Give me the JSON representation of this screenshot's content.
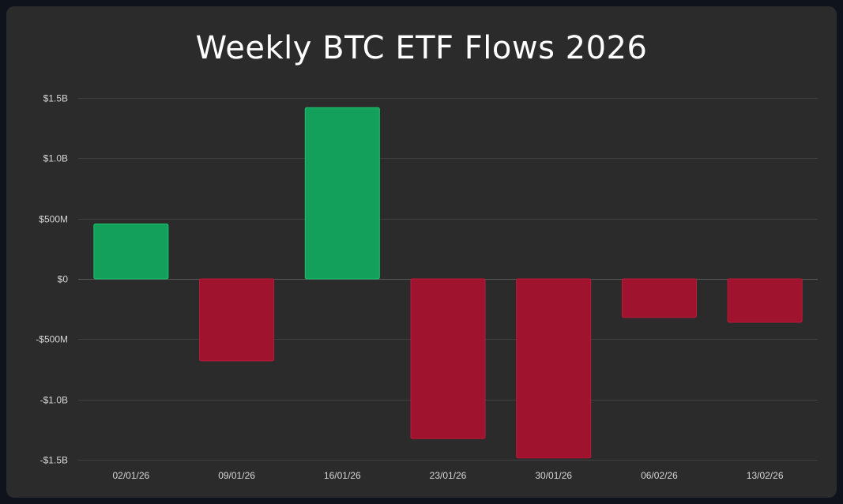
{
  "chart_data": {
    "type": "bar",
    "title": "Weekly BTC ETF Flows 2026",
    "xlabel": "",
    "ylabel": "",
    "categories": [
      "02/01/26",
      "09/01/26",
      "16/01/26",
      "23/01/26",
      "30/01/26",
      "06/02/26",
      "13/02/26"
    ],
    "values": [
      455,
      -680,
      1420,
      -1325,
      -1485,
      -320,
      -360
    ],
    "value_unit": "USD millions",
    "ylim": [
      -1500,
      1500
    ],
    "yticks": [
      1500,
      1000,
      500,
      0,
      -500,
      -1000,
      -1500
    ],
    "ytick_labels": [
      "$1.5B",
      "$1.0B",
      "$500M",
      "$0",
      "-$500M",
      "-$1.0B",
      "-$1.5B"
    ],
    "grid": true,
    "legend": "none",
    "colors": {
      "positive": "#12a05a",
      "positive_border": "#1fc470",
      "negative": "#a0132e",
      "negative_border": "#b81a38",
      "grid": "#3f3f3f",
      "zero_line": "#5a5a5a",
      "background": "#2b2b2b",
      "page": "#0f141c",
      "text": "#ffffff",
      "tick_text": "#d6d6d6"
    }
  }
}
